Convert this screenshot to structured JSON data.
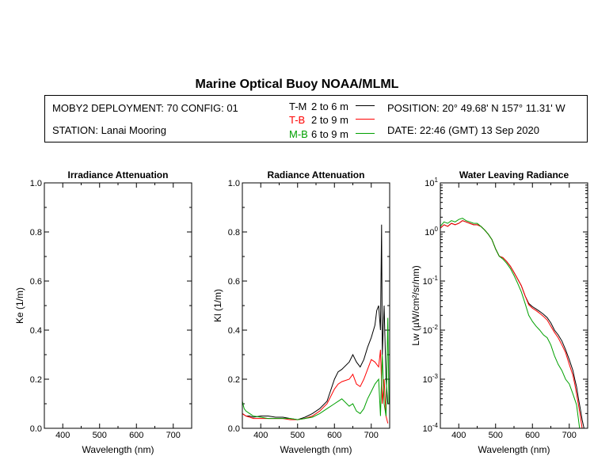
{
  "page_title": "Marine Optical Buoy NOAA/MLML",
  "info": {
    "deployment": "MOBY2 DEPLOYMENT: 70 CONFIG: 01",
    "station": "STATION: Lanai Mooring",
    "position": "POSITION: 20° 49.68' N   157° 11.31' W",
    "date": "DATE: 22:46 (GMT) 13 Sep 2020",
    "legend": [
      {
        "code": "T-M",
        "range": "2 to 6  m",
        "color": "#000000"
      },
      {
        "code": "T-B",
        "range": "2 to 9  m",
        "color": "#ff0000"
      },
      {
        "code": "M-B",
        "range": "6 to 9  m",
        "color": "#00a000"
      }
    ]
  },
  "chart_data": [
    {
      "type": "line",
      "title": "Irradiance Attenuation",
      "xlabel": "Wavelength (nm)",
      "ylabel": "Ke  (1/m)",
      "xlim": [
        350,
        750
      ],
      "ylim": [
        0,
        1
      ],
      "xticks": [
        "400",
        "500",
        "600",
        "700"
      ],
      "yticks": [
        "0.0",
        "0.2",
        "0.4",
        "0.6",
        "0.8",
        "1.0"
      ],
      "series": []
    },
    {
      "type": "line",
      "title": "Radiance Attenuation",
      "xlabel": "Wavelength (nm)",
      "ylabel": "Kl  (1/m)",
      "xlim": [
        350,
        750
      ],
      "ylim": [
        0,
        1
      ],
      "xticks": [
        "400",
        "500",
        "600",
        "700"
      ],
      "yticks": [
        "0.0",
        "0.2",
        "0.4",
        "0.6",
        "0.8",
        "1.0"
      ],
      "series": [
        {
          "name": "T-M",
          "color": "#000000",
          "x": [
            350,
            360,
            370,
            380,
            400,
            420,
            440,
            460,
            480,
            500,
            520,
            540,
            560,
            580,
            600,
            610,
            620,
            640,
            650,
            660,
            670,
            680,
            690,
            700,
            710,
            715,
            720,
            725,
            728,
            730,
            735,
            740,
            745
          ],
          "y": [
            0.06,
            0.05,
            0.05,
            0.045,
            0.05,
            0.05,
            0.045,
            0.045,
            0.04,
            0.035,
            0.045,
            0.06,
            0.08,
            0.11,
            0.2,
            0.23,
            0.24,
            0.27,
            0.3,
            0.27,
            0.25,
            0.28,
            0.33,
            0.37,
            0.42,
            0.48,
            0.5,
            0.4,
            0.83,
            0.3,
            0.5,
            0.2,
            0.1
          ]
        },
        {
          "name": "T-B",
          "color": "#ff0000",
          "x": [
            350,
            360,
            370,
            380,
            400,
            420,
            440,
            460,
            480,
            500,
            520,
            540,
            560,
            580,
            600,
            610,
            620,
            640,
            650,
            660,
            670,
            680,
            690,
            700,
            710,
            720,
            725,
            730,
            735,
            740,
            745
          ],
          "y": [
            0.06,
            0.05,
            0.045,
            0.04,
            0.04,
            0.04,
            0.04,
            0.04,
            0.035,
            0.035,
            0.04,
            0.05,
            0.07,
            0.1,
            0.16,
            0.18,
            0.19,
            0.2,
            0.22,
            0.18,
            0.17,
            0.2,
            0.24,
            0.28,
            0.27,
            0.25,
            0.32,
            0.1,
            0.2,
            0.05,
            0.02
          ]
        },
        {
          "name": "M-B",
          "color": "#00a000",
          "x": [
            350,
            355,
            360,
            370,
            380,
            400,
            420,
            440,
            460,
            480,
            500,
            520,
            540,
            560,
            580,
            600,
            610,
            620,
            640,
            650,
            660,
            670,
            680,
            690,
            700,
            710,
            720,
            725,
            730,
            735,
            740,
            745,
            748
          ],
          "y": [
            0.11,
            0.08,
            0.07,
            0.06,
            0.05,
            0.045,
            0.04,
            0.04,
            0.04,
            0.04,
            0.035,
            0.04,
            0.045,
            0.06,
            0.08,
            0.1,
            0.11,
            0.12,
            0.09,
            0.1,
            0.07,
            0.06,
            0.08,
            0.12,
            0.15,
            0.18,
            0.2,
            0.05,
            0.3,
            0.1,
            0.05,
            0.45,
            0.1
          ]
        }
      ]
    },
    {
      "type": "line",
      "title": "Water Leaving Radiance",
      "xlabel": "Wavelength (nm)",
      "ylabel": "Lw  (µW/cm²/sr/nm)",
      "xlim": [
        350,
        750
      ],
      "ylim": [
        0.0001,
        10
      ],
      "yscale": "log",
      "xticks": [
        "400",
        "500",
        "600",
        "700"
      ],
      "yticks": [
        "10-4",
        "10-3",
        "10-2",
        "10-1",
        "100",
        "101"
      ],
      "series": [
        {
          "name": "T-M",
          "color": "#000000",
          "x": [
            350,
            360,
            370,
            380,
            390,
            400,
            410,
            420,
            430,
            440,
            450,
            460,
            470,
            480,
            490,
            500,
            510,
            520,
            530,
            540,
            550,
            560,
            570,
            580,
            590,
            600,
            610,
            620,
            630,
            640,
            650,
            660,
            670,
            680,
            690,
            700,
            710,
            715,
            720,
            725,
            730,
            735,
            740
          ],
          "y": [
            1.2,
            1.4,
            1.3,
            1.5,
            1.4,
            1.5,
            1.7,
            1.6,
            1.5,
            1.4,
            1.4,
            1.3,
            1.1,
            0.9,
            0.7,
            0.45,
            0.32,
            0.3,
            0.25,
            0.2,
            0.15,
            0.11,
            0.08,
            0.05,
            0.035,
            0.03,
            0.027,
            0.024,
            0.021,
            0.018,
            0.014,
            0.01,
            0.008,
            0.006,
            0.004,
            0.0025,
            0.0015,
            0.001,
            0.0007,
            0.0004,
            0.00025,
            0.00015,
            0.0001
          ]
        },
        {
          "name": "T-B",
          "color": "#ff0000",
          "x": [
            350,
            360,
            370,
            380,
            390,
            400,
            410,
            420,
            430,
            440,
            450,
            460,
            470,
            480,
            490,
            500,
            510,
            520,
            530,
            540,
            550,
            560,
            570,
            580,
            590,
            600,
            610,
            620,
            630,
            640,
            650,
            660,
            670,
            680,
            690,
            700,
            710,
            715,
            720,
            725,
            730,
            735
          ],
          "y": [
            1.2,
            1.4,
            1.3,
            1.5,
            1.4,
            1.5,
            1.7,
            1.6,
            1.5,
            1.4,
            1.4,
            1.3,
            1.1,
            0.9,
            0.7,
            0.45,
            0.32,
            0.3,
            0.25,
            0.2,
            0.15,
            0.11,
            0.08,
            0.05,
            0.033,
            0.028,
            0.025,
            0.022,
            0.019,
            0.016,
            0.012,
            0.009,
            0.007,
            0.005,
            0.0035,
            0.002,
            0.0012,
            0.0008,
            0.0005,
            0.0003,
            0.00018,
            0.0001
          ]
        },
        {
          "name": "M-B",
          "color": "#00a000",
          "x": [
            350,
            360,
            370,
            380,
            390,
            400,
            410,
            420,
            430,
            440,
            450,
            460,
            470,
            480,
            490,
            500,
            510,
            520,
            530,
            540,
            550,
            560,
            570,
            580,
            590,
            600,
            610,
            620,
            630,
            640,
            650,
            660,
            670,
            680,
            690,
            700,
            710,
            720,
            725,
            728
          ],
          "y": [
            1.3,
            1.6,
            1.5,
            1.7,
            1.6,
            1.8,
            1.9,
            1.7,
            1.6,
            1.5,
            1.5,
            1.3,
            1.1,
            0.9,
            0.7,
            0.45,
            0.32,
            0.28,
            0.23,
            0.18,
            0.13,
            0.09,
            0.06,
            0.035,
            0.02,
            0.015,
            0.012,
            0.01,
            0.008,
            0.007,
            0.005,
            0.003,
            0.002,
            0.0015,
            0.001,
            0.0008,
            0.0005,
            0.0003,
            0.00015,
            0.0001
          ]
        }
      ]
    }
  ]
}
